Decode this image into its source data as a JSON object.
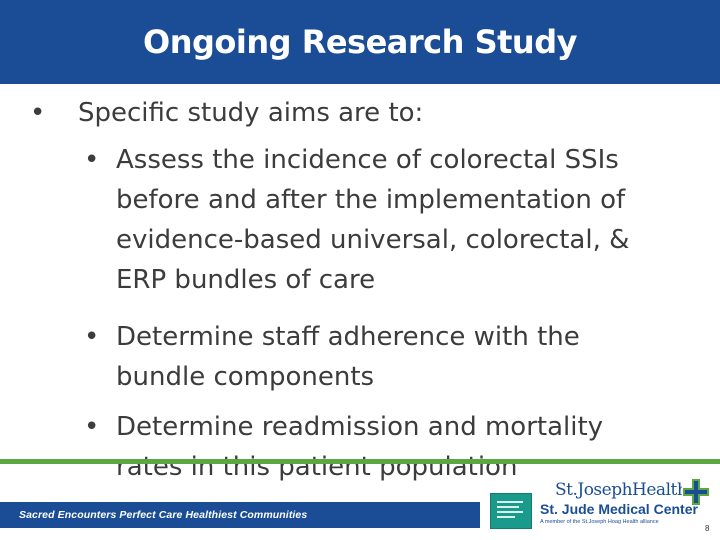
{
  "slide": {
    "title": "Ongoing Research Study",
    "bullet": "Specific study aims are to:",
    "sub_bullets": [
      "Assess the incidence of colorectal SSIs before and after the implementation of evidence-based universal, colorectal, & ERP bundles of care",
      "Determine staff adherence with the bundle components",
      "Determine readmission and mortality rates in this patient population"
    ],
    "bullet_glyph": "•"
  },
  "footer": {
    "tagline": "Sacred Encounters   Perfect Care   Healthiest Communities",
    "logo_name": "St.JosephHealth",
    "logo_center": "St. Jude Medical Center",
    "logo_member": "A member of the St.Joseph Hoag Health alliance",
    "page_number": "8"
  },
  "colors": {
    "title_bar": "#1a4d96",
    "accent_green": "#5aa83f",
    "badge_teal": "#1a9a8a",
    "body_text": "#3c3c3c"
  },
  "icons": {
    "badge": "award-badge-icon",
    "cross": "medical-cross-icon"
  }
}
